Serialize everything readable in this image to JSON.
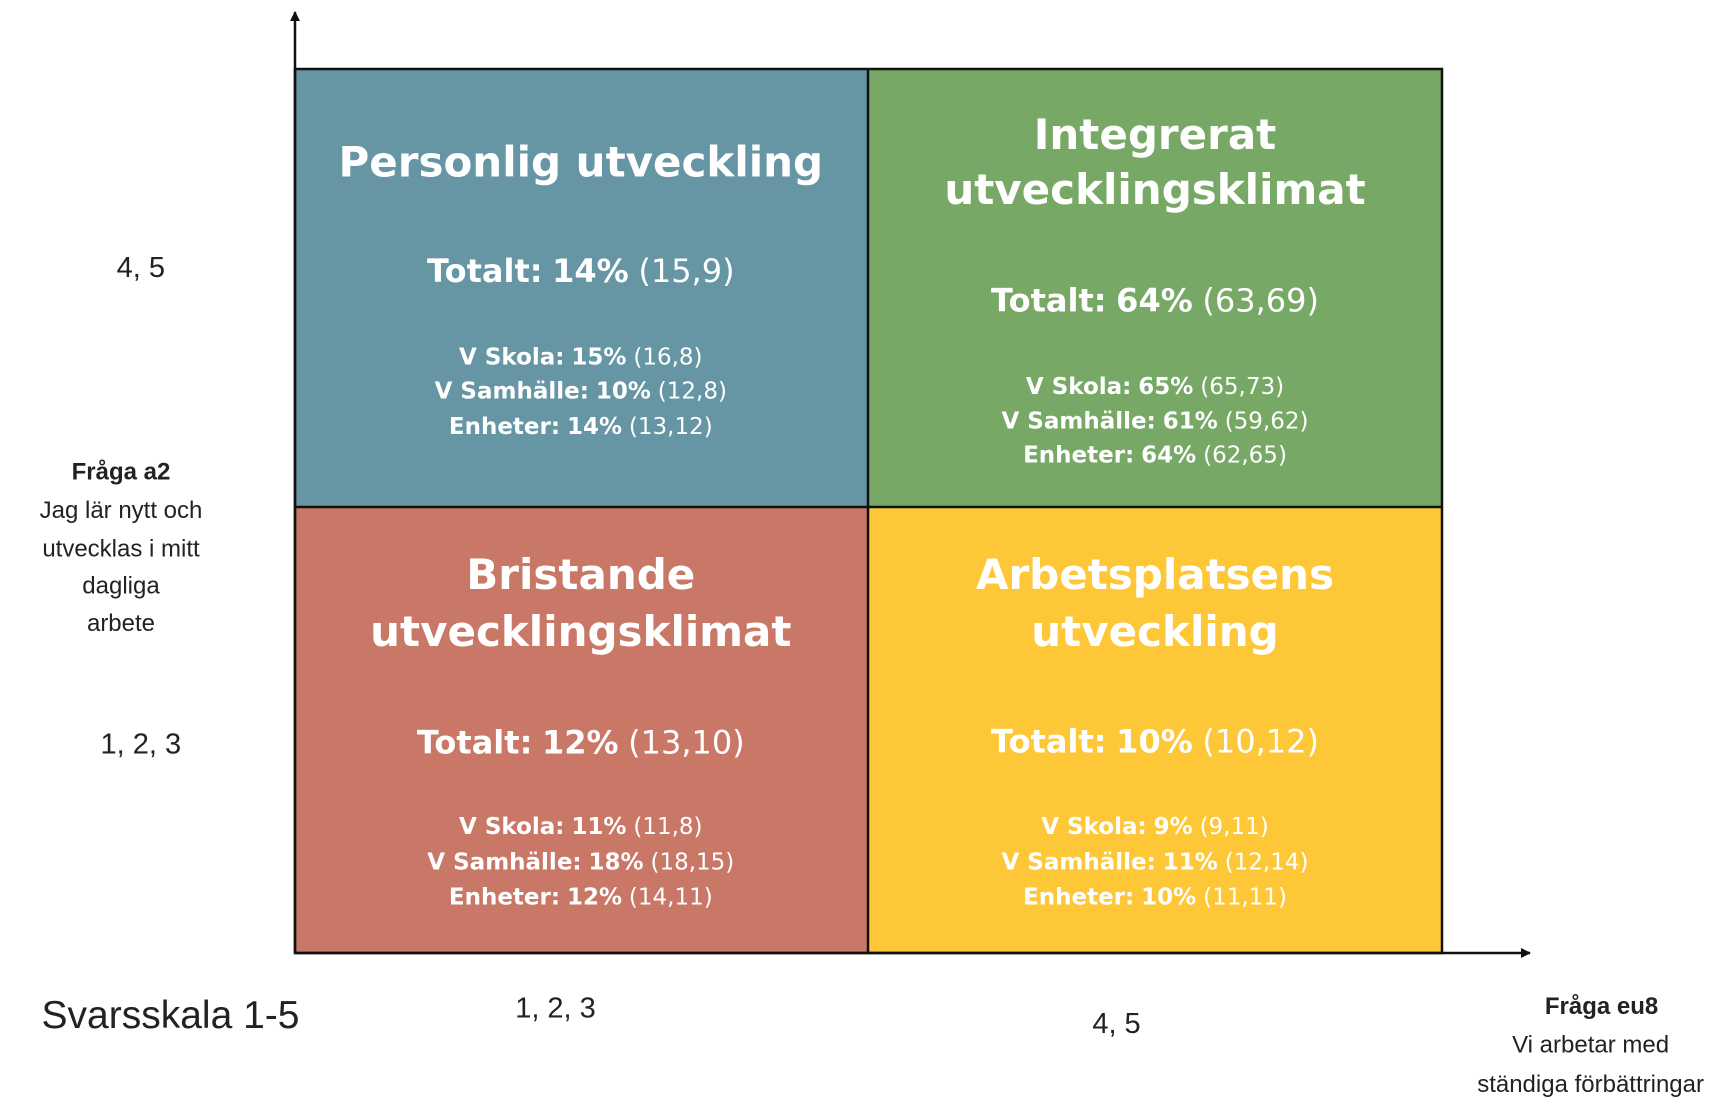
{
  "quadrants": [
    {
      "title": [
        "Personlig utveckling"
      ],
      "total": {
        "label": "Totalt:",
        "value": "14%",
        "range": "(15,9)"
      },
      "rows": [
        {
          "label": "V Skola:",
          "value": "15%",
          "range": "(16,8)"
        },
        {
          "label": "V Samhälle:",
          "value": "10%",
          "range": "(12,8)"
        },
        {
          "label": "Enheter:",
          "value": "14%",
          "range": "(13,12)"
        }
      ]
    },
    {
      "title": [
        "Integrerat",
        "utvecklingsklimat"
      ],
      "total": {
        "label": "Totalt:",
        "value": "64%",
        "range": "(63,69)"
      },
      "rows": [
        {
          "label": "V Skola:",
          "value": "65%",
          "range": "(65,73)"
        },
        {
          "label": "V Samhälle:",
          "value": "61%",
          "range": "(59,62)"
        },
        {
          "label": "Enheter:",
          "value": "64%",
          "range": "(62,65)"
        }
      ]
    },
    {
      "title": [
        "Bristande",
        "utvecklingsklimat"
      ],
      "total": {
        "label": "Totalt:",
        "value": "12%",
        "range": "(13,10)"
      },
      "rows": [
        {
          "label": "V Skola:",
          "value": "11%",
          "range": "(11,8)"
        },
        {
          "label": "V Samhälle:",
          "value": "18%",
          "range": "(18,15)"
        },
        {
          "label": "Enheter:",
          "value": "12%",
          "range": "(14,11)"
        }
      ]
    },
    {
      "title": [
        "Arbetsplatsens",
        "utveckling"
      ],
      "total": {
        "label": "Totalt:",
        "value": "10%",
        "range": "(10,12)"
      },
      "rows": [
        {
          "label": "V Skola:",
          "value": "9%",
          "range": "(9,11)"
        },
        {
          "label": "V Samhälle:",
          "value": "11%",
          "range": "(12,14)"
        },
        {
          "label": "Enheter:",
          "value": "10%",
          "range": "(11,11)"
        }
      ]
    }
  ],
  "y_axis": {
    "high": "4, 5",
    "low": "1, 2, 3",
    "question": "Fråga a2",
    "description": [
      "Jag lär nytt och",
      "utvecklas i mitt",
      "dagliga",
      "arbete"
    ]
  },
  "x_axis": {
    "low": "1, 2, 3",
    "high": "4, 5",
    "question": "Fråga eu8",
    "description": [
      "Vi arbetar med",
      "ständiga förbättringar"
    ]
  },
  "scale_label": "Svarsskala 1-5"
}
